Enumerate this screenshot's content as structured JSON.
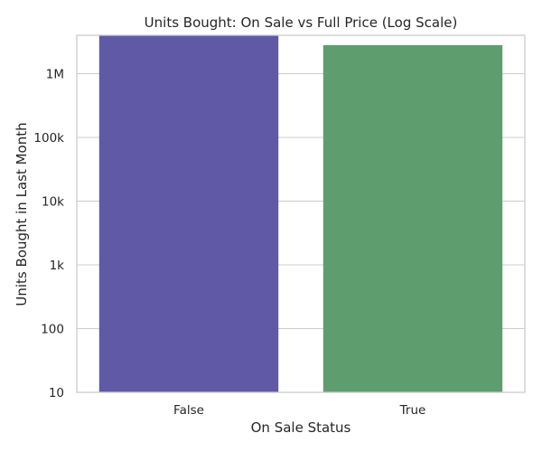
{
  "chart_data": {
    "type": "bar",
    "title": "Units Bought: On Sale vs Full Price (Log Scale)",
    "xlabel": "On Sale Status",
    "ylabel": "Units Bought in Last Month",
    "y_scale": "log",
    "ylim": [
      10,
      4000000
    ],
    "grid": "horizontal",
    "categories": [
      "False",
      "True"
    ],
    "values": [
      4000000,
      2800000
    ],
    "bar_colors": [
      "#5f59a6",
      "#5e9e6e"
    ],
    "y_ticks": [
      {
        "value": 10,
        "label": "10"
      },
      {
        "value": 100,
        "label": "100"
      },
      {
        "value": 1000,
        "label": "1k"
      },
      {
        "value": 10000,
        "label": "10k"
      },
      {
        "value": 100000,
        "label": "100k"
      },
      {
        "value": 1000000,
        "label": "1M"
      }
    ]
  }
}
